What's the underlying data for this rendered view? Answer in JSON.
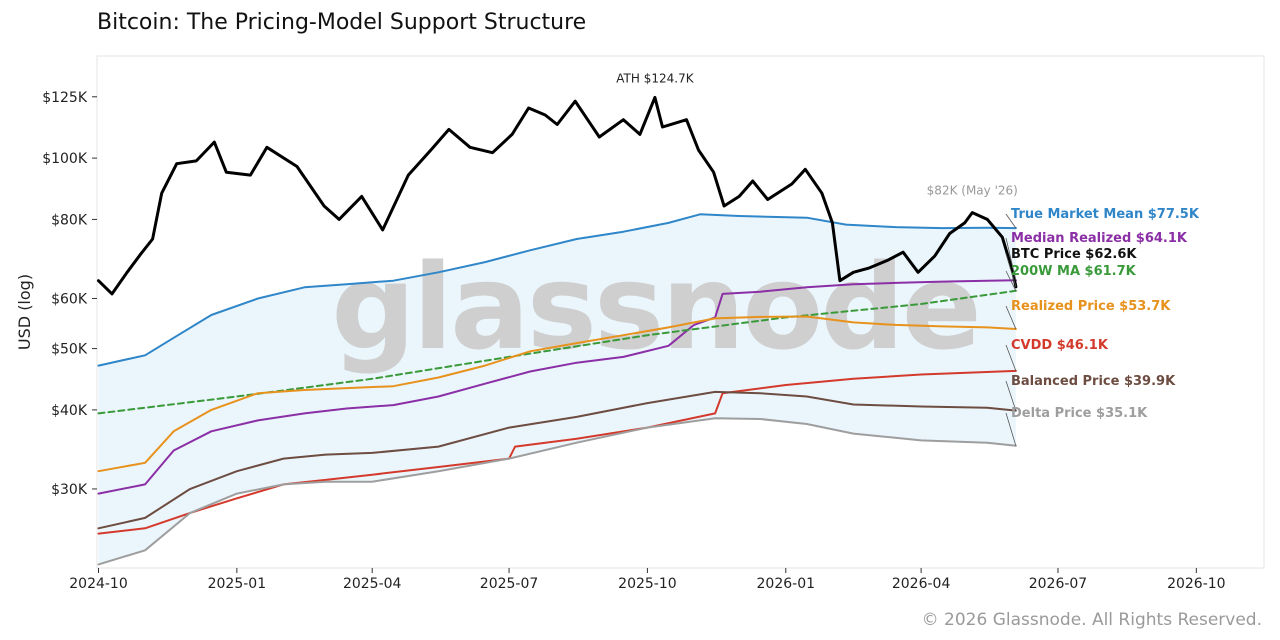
{
  "title": "Bitcoin: The Pricing-Model Support Structure",
  "copyright": "© 2026 Glassnode. All Rights Reserved.",
  "watermark": "glassnode",
  "chart_data": {
    "type": "line",
    "title": "Bitcoin: The Pricing-Model Support Structure",
    "xlabel": "",
    "ylabel": "USD (log)",
    "y_scale": "log",
    "ylim": [
      22500,
      145000
    ],
    "xlim": [
      "2024-09-30",
      "2026-11-15"
    ],
    "grid": false,
    "x_ticks": [
      "2024-10",
      "2025-01",
      "2025-04",
      "2025-07",
      "2025-10",
      "2026-01",
      "2026-04",
      "2026-07",
      "2026-10"
    ],
    "y_ticks": [
      {
        "value": 30000,
        "label": "$30K"
      },
      {
        "value": 40000,
        "label": "$40K"
      },
      {
        "value": 50000,
        "label": "$50K"
      },
      {
        "value": 60000,
        "label": "$60K"
      },
      {
        "value": 80000,
        "label": "$80K"
      },
      {
        "value": 100000,
        "label": "$100K"
      },
      {
        "value": 125000,
        "label": "$125K"
      }
    ],
    "shaded_band": {
      "between": [
        "True Market Mean",
        "Delta Price"
      ],
      "color": "#e8f4fb"
    },
    "series": [
      {
        "name": "True Market Mean",
        "label": "True Market Mean $77.5K",
        "color": "#2f86c8",
        "style": "solid",
        "width": 2,
        "points": [
          [
            "2024-10-01",
            47000
          ],
          [
            "2024-11-01",
            48800
          ],
          [
            "2024-11-20",
            52000
          ],
          [
            "2024-12-15",
            56500
          ],
          [
            "2025-01-15",
            60000
          ],
          [
            "2025-02-15",
            62500
          ],
          [
            "2025-03-15",
            63200
          ],
          [
            "2025-04-15",
            64000
          ],
          [
            "2025-05-15",
            66000
          ],
          [
            "2025-06-15",
            68500
          ],
          [
            "2025-07-15",
            71500
          ],
          [
            "2025-08-15",
            74500
          ],
          [
            "2025-09-15",
            76500
          ],
          [
            "2025-10-15",
            79000
          ],
          [
            "2025-11-05",
            81500
          ],
          [
            "2025-12-01",
            81000
          ],
          [
            "2026-01-15",
            80500
          ],
          [
            "2026-02-10",
            78500
          ],
          [
            "2026-03-15",
            77800
          ],
          [
            "2026-04-15",
            77500
          ],
          [
            "2026-05-15",
            77600
          ],
          [
            "2026-06-03",
            77500
          ]
        ]
      },
      {
        "name": "Median Realized",
        "label": "Median Realized $64.1K",
        "color": "#8b2fa6",
        "style": "solid",
        "width": 2,
        "points": [
          [
            "2024-10-01",
            29500
          ],
          [
            "2024-11-01",
            30500
          ],
          [
            "2024-11-20",
            34500
          ],
          [
            "2024-12-15",
            37000
          ],
          [
            "2025-01-15",
            38500
          ],
          [
            "2025-02-15",
            39500
          ],
          [
            "2025-03-15",
            40200
          ],
          [
            "2025-04-15",
            40700
          ],
          [
            "2025-05-15",
            42000
          ],
          [
            "2025-06-15",
            44000
          ],
          [
            "2025-07-15",
            46000
          ],
          [
            "2025-08-15",
            47500
          ],
          [
            "2025-09-15",
            48500
          ],
          [
            "2025-10-15",
            50500
          ],
          [
            "2025-11-01",
            54500
          ],
          [
            "2025-11-15",
            56000
          ],
          [
            "2025-11-20",
            61000
          ],
          [
            "2025-12-15",
            61500
          ],
          [
            "2026-01-15",
            62500
          ],
          [
            "2026-02-15",
            63200
          ],
          [
            "2026-03-15",
            63500
          ],
          [
            "2026-04-15",
            63800
          ],
          [
            "2026-05-15",
            64000
          ],
          [
            "2026-06-03",
            64100
          ]
        ]
      },
      {
        "name": "BTC Price",
        "label": "BTC Price $62.6K",
        "color": "#000000",
        "style": "solid",
        "width": 3,
        "points": [
          [
            "2024-10-01",
            64000
          ],
          [
            "2024-10-10",
            61000
          ],
          [
            "2024-10-20",
            66000
          ],
          [
            "2024-10-29",
            70500
          ],
          [
            "2024-11-06",
            74500
          ],
          [
            "2024-11-12",
            88000
          ],
          [
            "2024-11-22",
            98000
          ],
          [
            "2024-12-05",
            99000
          ],
          [
            "2024-12-17",
            106000
          ],
          [
            "2024-12-25",
            95000
          ],
          [
            "2025-01-10",
            94000
          ],
          [
            "2025-01-21",
            104000
          ],
          [
            "2025-02-10",
            97000
          ],
          [
            "2025-02-28",
            84000
          ],
          [
            "2025-03-10",
            80000
          ],
          [
            "2025-03-25",
            87000
          ],
          [
            "2025-04-08",
            77000
          ],
          [
            "2025-04-25",
            94000
          ],
          [
            "2025-05-10",
            103000
          ],
          [
            "2025-05-22",
            111000
          ],
          [
            "2025-06-05",
            104000
          ],
          [
            "2025-06-20",
            102000
          ],
          [
            "2025-07-03",
            109000
          ],
          [
            "2025-07-14",
            120000
          ],
          [
            "2025-07-25",
            117000
          ],
          [
            "2025-08-02",
            113000
          ],
          [
            "2025-08-14",
            123000
          ],
          [
            "2025-08-30",
            108000
          ],
          [
            "2025-09-15",
            115000
          ],
          [
            "2025-09-26",
            109000
          ],
          [
            "2025-10-06",
            124700
          ],
          [
            "2025-10-11",
            112000
          ],
          [
            "2025-10-27",
            115000
          ],
          [
            "2025-11-04",
            103000
          ],
          [
            "2025-11-14",
            95000
          ],
          [
            "2025-11-21",
            84000
          ],
          [
            "2025-12-01",
            87000
          ],
          [
            "2025-12-10",
            92000
          ],
          [
            "2025-12-20",
            86000
          ],
          [
            "2026-01-05",
            91000
          ],
          [
            "2026-01-14",
            96000
          ],
          [
            "2026-01-25",
            88000
          ],
          [
            "2026-02-01",
            79000
          ],
          [
            "2026-02-06",
            64000
          ],
          [
            "2026-02-15",
            66000
          ],
          [
            "2026-02-25",
            67000
          ],
          [
            "2026-03-10",
            69000
          ],
          [
            "2026-03-20",
            71000
          ],
          [
            "2026-03-30",
            66000
          ],
          [
            "2026-04-10",
            70000
          ],
          [
            "2026-04-20",
            76000
          ],
          [
            "2026-04-30",
            79000
          ],
          [
            "2026-05-05",
            82000
          ],
          [
            "2026-05-15",
            80000
          ],
          [
            "2026-05-25",
            75000
          ],
          [
            "2026-06-01",
            66000
          ],
          [
            "2026-06-03",
            62600
          ]
        ]
      },
      {
        "name": "200W MA",
        "label": "200W MA $61.7K",
        "color": "#3a9a3a",
        "style": "dashed",
        "width": 2,
        "points": [
          [
            "2024-10-01",
            39500
          ],
          [
            "2025-01-01",
            42000
          ],
          [
            "2025-04-01",
            44800
          ],
          [
            "2025-07-01",
            48500
          ],
          [
            "2025-10-01",
            52500
          ],
          [
            "2026-01-01",
            56000
          ],
          [
            "2026-04-01",
            58800
          ],
          [
            "2026-06-03",
            61700
          ]
        ]
      },
      {
        "name": "Realized Price",
        "label": "Realized Price $53.7K",
        "color": "#e8921e",
        "style": "solid",
        "width": 2,
        "points": [
          [
            "2024-10-01",
            32000
          ],
          [
            "2024-11-01",
            33000
          ],
          [
            "2024-11-20",
            37000
          ],
          [
            "2024-12-15",
            40000
          ],
          [
            "2025-01-15",
            42500
          ],
          [
            "2025-02-15",
            43000
          ],
          [
            "2025-03-15",
            43300
          ],
          [
            "2025-04-15",
            43600
          ],
          [
            "2025-05-15",
            45000
          ],
          [
            "2025-06-15",
            47000
          ],
          [
            "2025-07-15",
            49500
          ],
          [
            "2025-08-15",
            51000
          ],
          [
            "2025-09-15",
            52500
          ],
          [
            "2025-10-15",
            54000
          ],
          [
            "2025-11-15",
            55800
          ],
          [
            "2025-12-15",
            56100
          ],
          [
            "2026-01-15",
            56200
          ],
          [
            "2026-02-15",
            55000
          ],
          [
            "2026-03-15",
            54500
          ],
          [
            "2026-04-15",
            54200
          ],
          [
            "2026-05-15",
            54000
          ],
          [
            "2026-06-03",
            53700
          ]
        ]
      },
      {
        "name": "CVDD",
        "label": "CVDD $46.1K",
        "color": "#d43a2c",
        "style": "solid",
        "width": 2,
        "points": [
          [
            "2024-10-01",
            25500
          ],
          [
            "2024-11-01",
            26000
          ],
          [
            "2024-12-01",
            27500
          ],
          [
            "2025-01-01",
            29000
          ],
          [
            "2025-02-01",
            30500
          ],
          [
            "2025-03-01",
            31000
          ],
          [
            "2025-04-01",
            31600
          ],
          [
            "2025-05-15",
            32500
          ],
          [
            "2025-07-01",
            33500
          ],
          [
            "2025-07-05",
            35000
          ],
          [
            "2025-08-15",
            36000
          ],
          [
            "2025-10-01",
            37500
          ],
          [
            "2025-11-15",
            39500
          ],
          [
            "2025-11-20",
            42500
          ],
          [
            "2026-01-01",
            43800
          ],
          [
            "2026-02-15",
            44800
          ],
          [
            "2026-04-01",
            45500
          ],
          [
            "2026-06-03",
            46100
          ]
        ]
      },
      {
        "name": "Balanced Price",
        "label": "Balanced Price $39.9K",
        "color": "#6d4c41",
        "style": "solid",
        "width": 2,
        "points": [
          [
            "2024-10-01",
            26000
          ],
          [
            "2024-11-01",
            27000
          ],
          [
            "2024-12-01",
            30000
          ],
          [
            "2025-01-01",
            32000
          ],
          [
            "2025-02-01",
            33500
          ],
          [
            "2025-03-01",
            34000
          ],
          [
            "2025-04-01",
            34200
          ],
          [
            "2025-05-15",
            35000
          ],
          [
            "2025-07-01",
            37500
          ],
          [
            "2025-08-15",
            39000
          ],
          [
            "2025-10-01",
            41000
          ],
          [
            "2025-11-15",
            42700
          ],
          [
            "2025-12-15",
            42500
          ],
          [
            "2026-01-15",
            42000
          ],
          [
            "2026-02-15",
            40800
          ],
          [
            "2026-04-01",
            40500
          ],
          [
            "2026-05-15",
            40300
          ],
          [
            "2026-06-03",
            39900
          ]
        ]
      },
      {
        "name": "Delta Price",
        "label": "Delta Price $35.1K",
        "color": "#9e9e9e",
        "style": "solid",
        "width": 2,
        "points": [
          [
            "2024-10-01",
            22800
          ],
          [
            "2024-11-01",
            24000
          ],
          [
            "2024-12-01",
            27500
          ],
          [
            "2025-01-01",
            29500
          ],
          [
            "2025-02-01",
            30500
          ],
          [
            "2025-03-01",
            30800
          ],
          [
            "2025-04-01",
            30800
          ],
          [
            "2025-05-15",
            32000
          ],
          [
            "2025-07-01",
            33500
          ],
          [
            "2025-08-15",
            35500
          ],
          [
            "2025-10-01",
            37500
          ],
          [
            "2025-11-15",
            38800
          ],
          [
            "2025-12-15",
            38700
          ],
          [
            "2026-01-15",
            38000
          ],
          [
            "2026-02-15",
            36700
          ],
          [
            "2026-04-01",
            35800
          ],
          [
            "2026-05-15",
            35500
          ],
          [
            "2026-06-03",
            35100
          ]
        ]
      }
    ],
    "annotations": [
      {
        "text": "ATH $124.7K",
        "x": "2025-10-06",
        "y": 124700,
        "color": "#222222"
      },
      {
        "text": "$82K (May '26)",
        "x": "2026-05-05",
        "y": 82000,
        "color": "#999999"
      }
    ]
  }
}
